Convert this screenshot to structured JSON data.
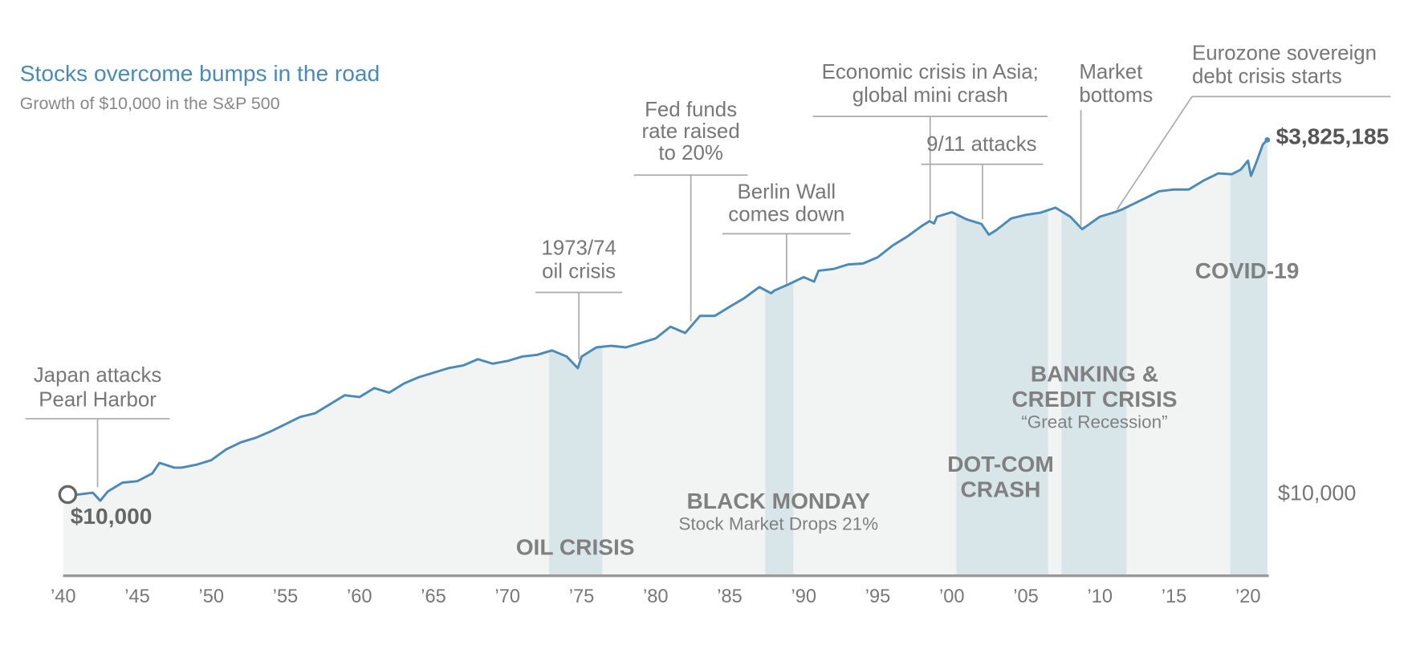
{
  "chart_data": {
    "type": "line",
    "title": "Stocks overcome bumps in the road",
    "subtitle": "Growth of $10,000 in the S&P 500",
    "log_y": true,
    "color": "#4a8ab8",
    "area_color": "#f2f4f4",
    "band_color": "#d8e6e9",
    "x": [
      1940,
      1941,
      1942,
      1942.5,
      1943,
      1944,
      1945,
      1946,
      1946.5,
      1947.5,
      1948,
      1949,
      1950,
      1951,
      1952,
      1953,
      1954,
      1955,
      1956,
      1957,
      1958,
      1959,
      1960,
      1961,
      1962,
      1963,
      1964,
      1965,
      1966,
      1967,
      1968,
      1969,
      1970,
      1971,
      1972,
      1973,
      1974,
      1974.75,
      1975,
      1976,
      1977,
      1978,
      1979,
      1980,
      1981,
      1982,
      1983,
      1984,
      1985,
      1986,
      1987,
      1987.8,
      1988,
      1989,
      1990,
      1990.7,
      1991,
      1992,
      1993,
      1994,
      1995,
      1996,
      1997,
      1998,
      1998.5,
      1998.8,
      1999,
      2000,
      2001,
      2002,
      2002.5,
      2003,
      2004,
      2005,
      2006,
      2007,
      2008,
      2008.8,
      2010,
      2011,
      2011.5,
      2012,
      2013,
      2014,
      2015,
      2016,
      2017,
      2018,
      2018.9,
      2019.5,
      2020,
      2020.2,
      2020.6,
      2021,
      2021.3
    ],
    "values": [
      10000,
      10000,
      10300,
      9000,
      10500,
      12200,
      12500,
      14200,
      17000,
      15700,
      15700,
      16500,
      17800,
      21300,
      24000,
      25900,
      28800,
      32500,
      36700,
      39000,
      45400,
      52800,
      51200,
      59600,
      55200,
      64300,
      71500,
      77100,
      83100,
      87000,
      96700,
      89700,
      93900,
      101000,
      104000,
      112000,
      101000,
      83100,
      101000,
      118000,
      121000,
      118000,
      127000,
      137000,
      166700,
      150000,
      200000,
      200000,
      233000,
      270000,
      324000,
      292000,
      305000,
      340000,
      383000,
      355000,
      426000,
      439000,
      474000,
      481000,
      535000,
      650000,
      757000,
      907000,
      980000,
      940000,
      1056000,
      1139000,
      1009000,
      935000,
      780000,
      842000,
      1024000,
      1088000,
      1130000,
      1228000,
      1056000,
      855000,
      1056000,
      1139000,
      1191000,
      1266000,
      1429000,
      1614000,
      1663000,
      1663000,
      1933000,
      2183000,
      2149000,
      2319000,
      2698000,
      2090000,
      2698000,
      3542000,
      3825185
    ],
    "start_label": "$10,000",
    "end_label": "$3,825,185",
    "xlim": [
      1940,
      2021.4
    ],
    "ylim": [
      2560,
      3825185
    ],
    "xticks": [
      {
        "value": 1940,
        "label": "’40"
      },
      {
        "value": 1945,
        "label": "’45"
      },
      {
        "value": 1950,
        "label": "’50"
      },
      {
        "value": 1955,
        "label": "’55"
      },
      {
        "value": 1960,
        "label": "’60"
      },
      {
        "value": 1965,
        "label": "’65"
      },
      {
        "value": 1970,
        "label": "’70"
      },
      {
        "value": 1975,
        "label": "’75"
      },
      {
        "value": 1980,
        "label": "’80"
      },
      {
        "value": 1985,
        "label": "’85"
      },
      {
        "value": 1990,
        "label": "’90"
      },
      {
        "value": 1995,
        "label": "’95"
      },
      {
        "value": 2000,
        "label": "’00"
      },
      {
        "value": 2005,
        "label": "’05"
      },
      {
        "value": 2010,
        "label": "’10"
      },
      {
        "value": 2015,
        "label": "’15"
      },
      {
        "value": 2020,
        "label": "’20"
      }
    ],
    "yticks": [
      {
        "value": 10000,
        "label": "$10,000"
      }
    ],
    "periods": [
      {
        "start": 1972.8,
        "end": 1976.4,
        "label": [
          "OIL CRISIS"
        ]
      },
      {
        "start": 1987.4,
        "end": 1989.3,
        "label": [
          "BLACK MONDAY"
        ],
        "sublabel": "Stock Market Drops 21%"
      },
      {
        "start": 2000.3,
        "end": 2006.5,
        "label": [
          "DOT-COM",
          "CRASH"
        ]
      },
      {
        "start": 2007.4,
        "end": 2011.8,
        "label": [
          "BANKING &",
          "CREDIT CRISIS"
        ],
        "sublabel": "“Great Recession”"
      },
      {
        "start": 2018.8,
        "end": 2021.4,
        "label": [
          "COVID-19"
        ]
      }
    ],
    "annotations": [
      {
        "lines": [
          "Japan attacks",
          "Pearl Harbor"
        ]
      },
      {
        "lines": [
          "1973/74",
          "oil crisis"
        ]
      },
      {
        "lines": [
          "Fed funds",
          "rate raised",
          "to 20%"
        ]
      },
      {
        "lines": [
          "Berlin Wall",
          "comes down"
        ]
      },
      {
        "lines": [
          "Economic crisis in Asia;",
          "global mini crash"
        ]
      },
      {
        "lines": [
          "9/11 attacks"
        ]
      },
      {
        "lines": [
          "Market",
          "bottoms"
        ]
      },
      {
        "lines": [
          "Eurozone sovereign",
          "debt crisis starts"
        ]
      }
    ]
  }
}
